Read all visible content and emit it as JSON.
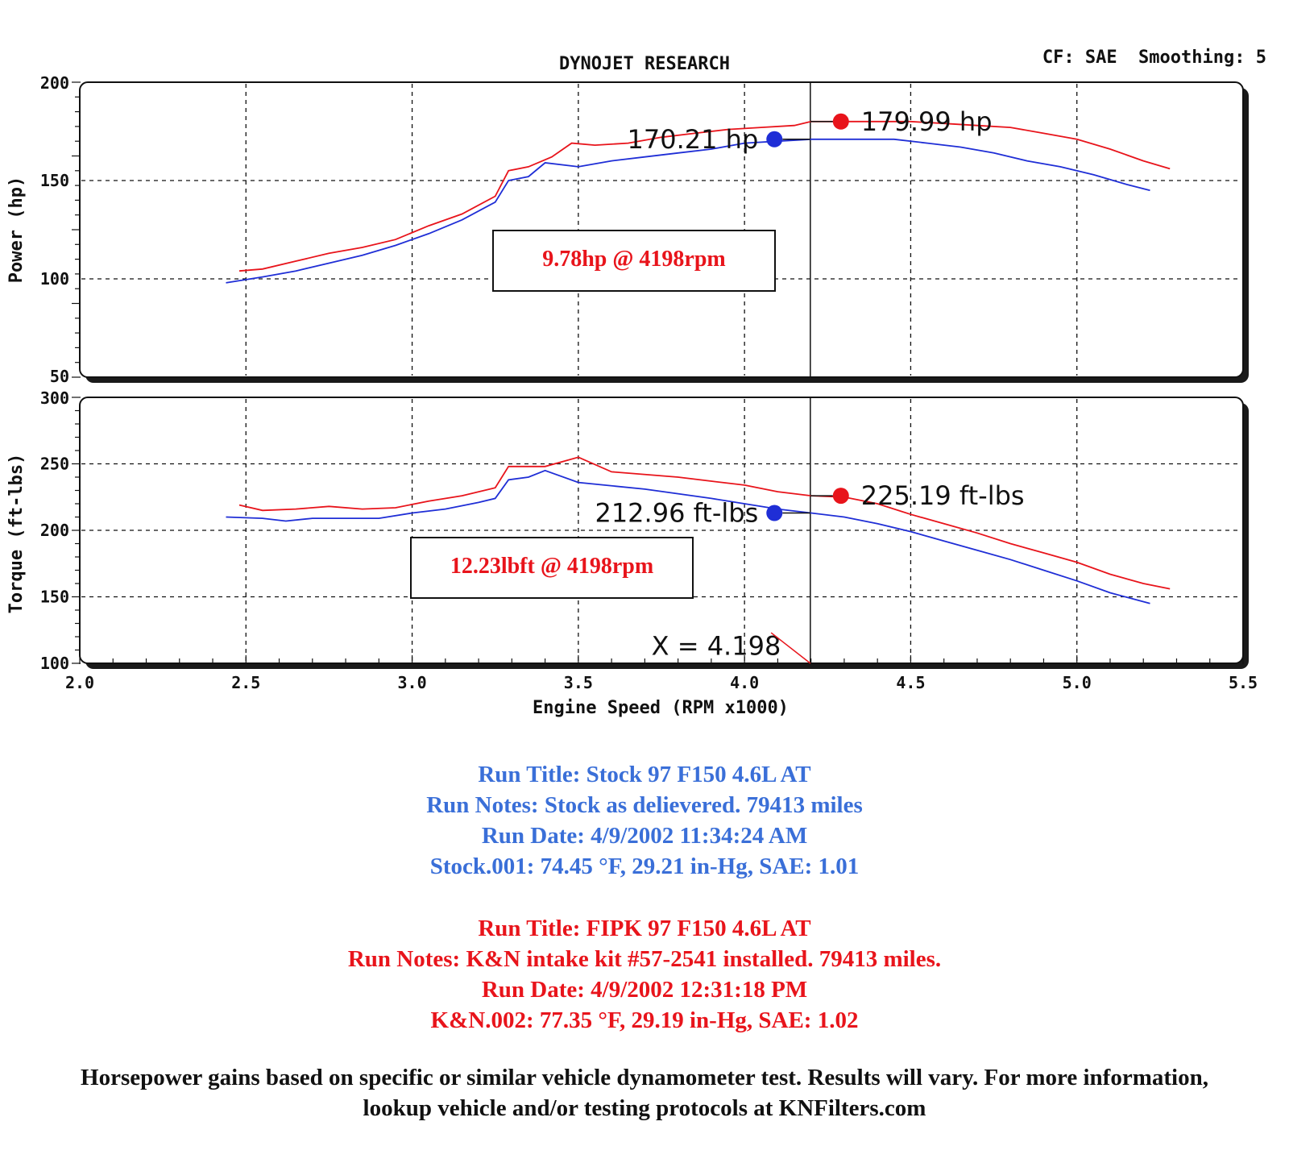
{
  "header": {
    "title": "DYNOJET RESEARCH",
    "settings": "CF: SAE  Smoothing: 5"
  },
  "colors": {
    "stock": "#1f2ed6",
    "kn": "#e8141b",
    "stock_text": "#3a6fd8"
  },
  "chart_data": [
    {
      "type": "line",
      "ylabel": "Power (hp)",
      "xlabel": "",
      "xlim": [
        2.0,
        5.5
      ],
      "ylim": [
        50,
        200
      ],
      "yticks": [
        50,
        100,
        150,
        200
      ],
      "grid": true,
      "cursor_x": 4.198,
      "series": [
        {
          "color": "#e8141b",
          "points": [
            [
              2.48,
              104
            ],
            [
              2.55,
              105
            ],
            [
              2.65,
              109
            ],
            [
              2.75,
              113
            ],
            [
              2.85,
              116
            ],
            [
              2.95,
              120
            ],
            [
              3.05,
              127
            ],
            [
              3.15,
              133
            ],
            [
              3.25,
              142
            ],
            [
              3.29,
              155
            ],
            [
              3.35,
              157
            ],
            [
              3.42,
              162
            ],
            [
              3.48,
              169
            ],
            [
              3.55,
              168
            ],
            [
              3.65,
              169
            ],
            [
              3.75,
              172
            ],
            [
              3.85,
              174
            ],
            [
              3.95,
              176
            ],
            [
              4.05,
              177
            ],
            [
              4.15,
              178
            ],
            [
              4.2,
              180
            ],
            [
              4.28,
              180
            ],
            [
              4.4,
              180
            ],
            [
              4.5,
              180
            ],
            [
              4.6,
              179
            ],
            [
              4.7,
              178
            ],
            [
              4.8,
              177
            ],
            [
              4.9,
              174
            ],
            [
              5.0,
              171
            ],
            [
              5.1,
              166
            ],
            [
              5.2,
              160
            ],
            [
              5.28,
              156
            ]
          ]
        },
        {
          "color": "#1f2ed6",
          "points": [
            [
              2.44,
              98
            ],
            [
              2.55,
              101
            ],
            [
              2.65,
              104
            ],
            [
              2.75,
              108
            ],
            [
              2.85,
              112
            ],
            [
              2.95,
              117
            ],
            [
              3.05,
              123
            ],
            [
              3.15,
              130
            ],
            [
              3.25,
              139
            ],
            [
              3.29,
              150
            ],
            [
              3.35,
              152
            ],
            [
              3.4,
              159
            ],
            [
              3.5,
              157
            ],
            [
              3.6,
              160
            ],
            [
              3.7,
              162
            ],
            [
              3.8,
              164
            ],
            [
              3.9,
              166
            ],
            [
              4.0,
              169
            ],
            [
              4.1,
              170
            ],
            [
              4.2,
              171
            ],
            [
              4.3,
              171
            ],
            [
              4.45,
              171
            ],
            [
              4.55,
              169
            ],
            [
              4.65,
              167
            ],
            [
              4.75,
              164
            ],
            [
              4.85,
              160
            ],
            [
              4.95,
              157
            ],
            [
              5.05,
              153
            ],
            [
              5.15,
              148
            ],
            [
              5.22,
              145
            ]
          ]
        }
      ],
      "markers": [
        {
          "x": 4.09,
          "y": 171,
          "color": "#1f2ed6",
          "label": "170.21 hp"
        },
        {
          "x": 4.29,
          "y": 180,
          "color": "#e8141b",
          "label": "179.99 hp"
        }
      ],
      "annotation": "9.78hp @ 4198rpm"
    },
    {
      "type": "line",
      "ylabel": "Torque (ft-lbs)",
      "xlabel": "Engine Speed (RPM x1000)",
      "xlim": [
        2.0,
        5.5
      ],
      "ylim": [
        100,
        300
      ],
      "yticks": [
        100,
        150,
        200,
        250,
        300
      ],
      "xticks": [
        2.0,
        2.5,
        3.0,
        3.5,
        4.0,
        4.5,
        5.0,
        5.5
      ],
      "xtick_labels": [
        "2.0",
        "2.5",
        "3.0",
        "3.5",
        "4.0",
        "4.5",
        "5.0",
        "5.5"
      ],
      "grid": true,
      "cursor_x": 4.198,
      "cursor_label": "X = 4.198",
      "series": [
        {
          "color": "#e8141b",
          "points": [
            [
              2.48,
              219
            ],
            [
              2.55,
              215
            ],
            [
              2.65,
              216
            ],
            [
              2.75,
              218
            ],
            [
              2.85,
              216
            ],
            [
              2.95,
              217
            ],
            [
              3.05,
              222
            ],
            [
              3.15,
              226
            ],
            [
              3.25,
              232
            ],
            [
              3.29,
              248
            ],
            [
              3.4,
              248
            ],
            [
              3.5,
              255
            ],
            [
              3.6,
              244
            ],
            [
              3.8,
              240
            ],
            [
              3.9,
              237
            ],
            [
              4.0,
              234
            ],
            [
              4.1,
              229
            ],
            [
              4.2,
              226
            ],
            [
              4.3,
              225
            ],
            [
              4.4,
              220
            ],
            [
              4.5,
              212
            ],
            [
              4.6,
              205
            ],
            [
              4.7,
              198
            ],
            [
              4.8,
              190
            ],
            [
              4.9,
              183
            ],
            [
              5.0,
              176
            ],
            [
              5.1,
              167
            ],
            [
              5.2,
              160
            ],
            [
              5.28,
              156
            ]
          ]
        },
        {
          "color": "#1f2ed6",
          "points": [
            [
              2.44,
              210
            ],
            [
              2.55,
              209
            ],
            [
              2.62,
              207
            ],
            [
              2.7,
              209
            ],
            [
              2.8,
              209
            ],
            [
              2.9,
              209
            ],
            [
              3.0,
              213
            ],
            [
              3.1,
              216
            ],
            [
              3.2,
              221
            ],
            [
              3.25,
              224
            ],
            [
              3.29,
              238
            ],
            [
              3.35,
              240
            ],
            [
              3.4,
              245
            ],
            [
              3.5,
              236
            ],
            [
              3.7,
              231
            ],
            [
              3.9,
              224
            ],
            [
              4.0,
              220
            ],
            [
              4.1,
              216
            ],
            [
              4.2,
              213
            ],
            [
              4.3,
              210
            ],
            [
              4.4,
              205
            ],
            [
              4.5,
              199
            ],
            [
              4.6,
              192
            ],
            [
              4.7,
              185
            ],
            [
              4.8,
              178
            ],
            [
              4.9,
              170
            ],
            [
              5.0,
              162
            ],
            [
              5.1,
              153
            ],
            [
              5.22,
              145
            ]
          ]
        }
      ],
      "markers": [
        {
          "x": 4.09,
          "y": 213,
          "color": "#1f2ed6",
          "label": "212.96 ft-lbs"
        },
        {
          "x": 4.29,
          "y": 226,
          "color": "#e8141b",
          "label": "225.19 ft-lbs"
        }
      ],
      "annotation": "12.23lbft @ 4198rpm"
    }
  ],
  "stock_notes": {
    "title": "Run Title: Stock 97 F150 4.6L AT",
    "notes": "Run Notes: Stock as delievered. 79413 miles",
    "date": "Run Date: 4/9/2002 11:34:24 AM",
    "conditions": "Stock.001: 74.45 °F, 29.21 in-Hg, SAE: 1.01"
  },
  "kn_notes": {
    "title": "Run Title: FIPK 97 F150 4.6L AT",
    "notes": "Run Notes: K&N intake kit #57-2541 installed. 79413 miles.",
    "date": "Run Date: 4/9/2002 12:31:18 PM",
    "conditions": "K&N.002: 77.35 °F, 29.19 in-Hg, SAE: 1.02"
  },
  "disclaimer": "Horsepower gains based on specific or similar vehicle dynamometer test. Results will vary. For more information, lookup vehicle and/or testing protocols at KNFilters.com"
}
